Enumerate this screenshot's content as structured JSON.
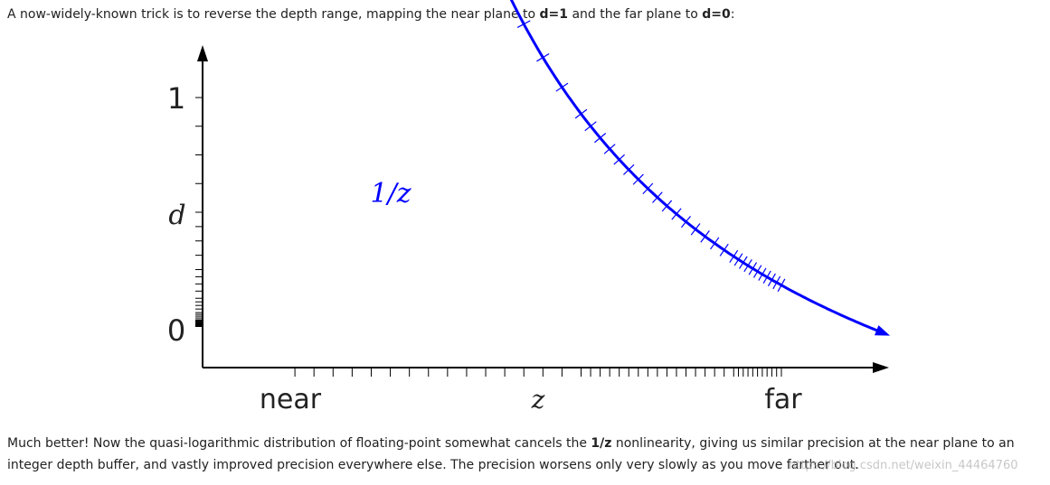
{
  "intro": {
    "prefix": "A now-widely-known trick is to reverse the depth range, mapping the near plane to ",
    "near_value": "d=1",
    "middle": " and the far plane to ",
    "far_value": "d=0",
    "suffix": ":"
  },
  "figure": {
    "y_tick_top": "1",
    "y_tick_bottom": "0",
    "y_label": "d",
    "curve_label": "1/z",
    "x_label_left": "near",
    "x_label_center": "z",
    "x_label_right": "far",
    "curve_color": "#0000ff",
    "axis_color": "#000000"
  },
  "chart_data": {
    "type": "line",
    "series": [
      {
        "name": "1/z",
        "function": "reciprocal"
      }
    ],
    "xlabel": "z",
    "ylabel": "d",
    "y_ticks": [
      "0",
      "1"
    ],
    "x_ticks": [
      "near",
      "far"
    ]
  },
  "outro": {
    "line1_prefix": "Much better! Now the quasi-logarithmic distribution of floating-point somewhat cancels the ",
    "bold": "1/z",
    "line1_suffix": " nonlinearity, giving us similar precision at the near plane to an",
    "line2": "integer depth buffer, and vastly improved precision everywhere else. The precision worsens only very slowly as you move farther out."
  },
  "watermark": "https://blog.csdn.net/weixin_44464760"
}
